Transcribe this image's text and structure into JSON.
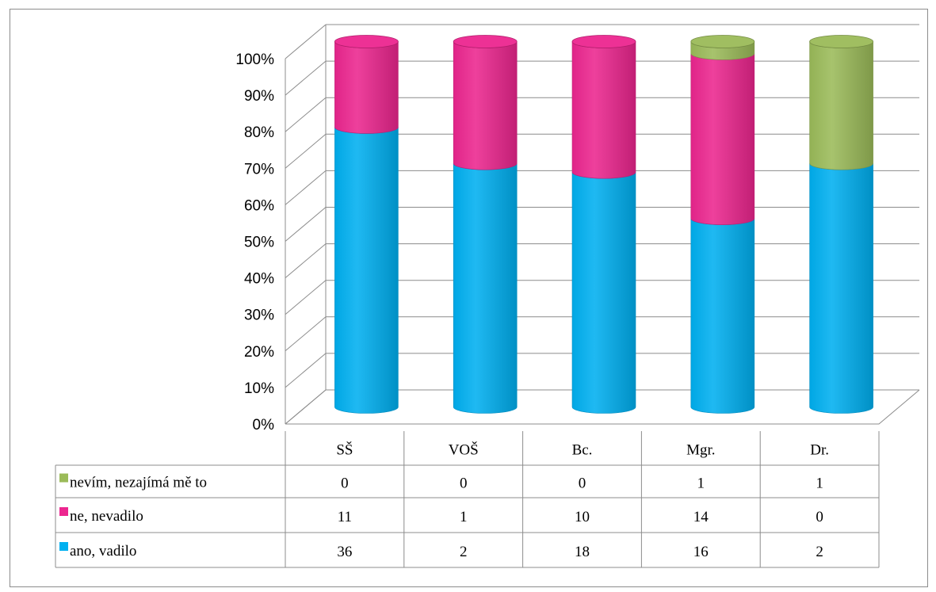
{
  "chart_data": {
    "type": "bar",
    "stacked": true,
    "percent_stacked": true,
    "three_d": true,
    "categories": [
      "SŠ",
      "VOŠ",
      "Bc.",
      "Mgr.",
      "Dr."
    ],
    "series": [
      {
        "name": "nevím, nezajímá mě to",
        "values": [
          0,
          0,
          0,
          1,
          1
        ],
        "color": "#9bbb59"
      },
      {
        "name": "ne, nevadilo",
        "values": [
          11,
          1,
          10,
          14,
          0
        ],
        "color": "#ec268f"
      },
      {
        "name": "ano, vadilo",
        "values": [
          36,
          2,
          18,
          16,
          2
        ],
        "color": "#00b0f0"
      }
    ],
    "y_ticks": [
      "0%",
      "10%",
      "20%",
      "30%",
      "40%",
      "50%",
      "60%",
      "70%",
      "80%",
      "90%",
      "100%"
    ],
    "ylim": [
      0,
      100
    ],
    "grid": true,
    "data_table": true
  }
}
